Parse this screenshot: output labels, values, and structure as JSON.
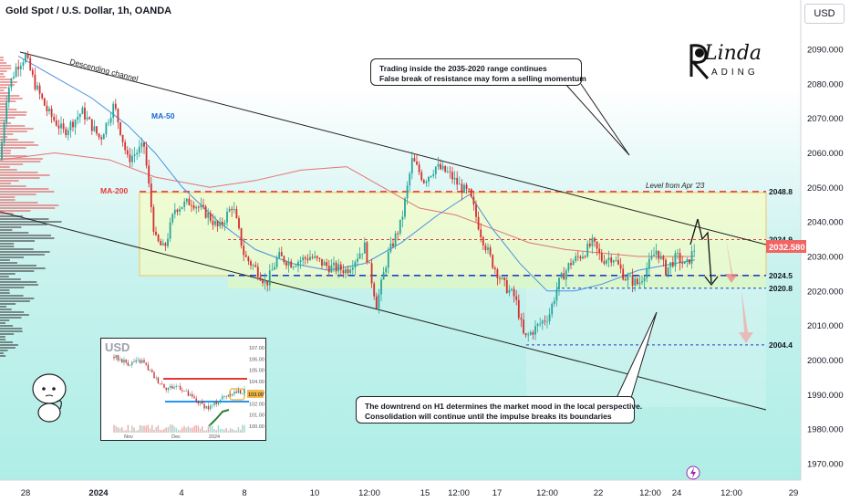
{
  "header": {
    "title": "Gold Spot / U.S. Dollar, 1h, OANDA",
    "currency_button": "USD"
  },
  "logo": {
    "brand": "Linda",
    "sub": "ADING"
  },
  "callouts": {
    "top": [
      "Trading inside the 2035-2020 range continues",
      "False break of resistance may form a selling momentum"
    ],
    "bottom": [
      "The downtrend on H1 determines the market mood in the local perspective.",
      "Consolidation will continue until the impulse breaks its boundaries"
    ]
  },
  "chart_data": {
    "type": "candlestick",
    "symbol": "Gold Spot / U.S. Dollar",
    "interval": "1h",
    "exchange": "OANDA",
    "ylim": [
      1965,
      2100
    ],
    "y_ticks": [
      2090,
      2080,
      2070,
      2060,
      2050,
      2040,
      2030,
      2020,
      2010,
      2000,
      1990,
      1980,
      1970
    ],
    "x_ticks": [
      "28",
      "2024",
      "4",
      "8",
      "10",
      "12:00",
      "15",
      "12:00",
      "17",
      "12:00",
      "22",
      "12:00",
      "24",
      "12:00",
      "29"
    ],
    "last_price": 2032.58,
    "last_price_label": "2032.580",
    "levels": [
      {
        "value": 2048.8,
        "label": "2048.8",
        "style": "dashed",
        "color": "#e53935"
      },
      {
        "value": 2034.9,
        "label": "2034.9",
        "style": "dashed",
        "color": "#e53935"
      },
      {
        "value": 2024.5,
        "label": "2024.5",
        "style": "dashed",
        "color": "#1e40c9"
      },
      {
        "value": 2020.8,
        "label": "2020.8",
        "style": "dashed",
        "color": "#1e40c9"
      },
      {
        "value": 2004.4,
        "label": "2004.4",
        "style": "dashed",
        "color": "#1e40c9"
      }
    ],
    "annotations": {
      "channel": "Descending channel",
      "ma50": "MA-50",
      "ma200": "MA-200",
      "level_note": "Level from Apr '23"
    },
    "path": [
      [
        0,
        2058
      ],
      [
        8,
        2078
      ],
      [
        18,
        2085
      ],
      [
        28,
        2088
      ],
      [
        38,
        2080
      ],
      [
        52,
        2072
      ],
      [
        70,
        2066
      ],
      [
        90,
        2072
      ],
      [
        110,
        2064
      ],
      [
        125,
        2074
      ],
      [
        140,
        2058
      ],
      [
        158,
        2062
      ],
      [
        170,
        2035
      ],
      [
        180,
        2032
      ],
      [
        192,
        2044
      ],
      [
        210,
        2046
      ],
      [
        228,
        2042
      ],
      [
        240,
        2038
      ],
      [
        255,
        2045
      ],
      [
        268,
        2030
      ],
      [
        282,
        2026
      ],
      [
        292,
        2022
      ],
      [
        305,
        2030
      ],
      [
        320,
        2028
      ],
      [
        340,
        2030
      ],
      [
        360,
        2027
      ],
      [
        380,
        2026
      ],
      [
        400,
        2033
      ],
      [
        413,
        2016
      ],
      [
        425,
        2030
      ],
      [
        440,
        2040
      ],
      [
        452,
        2058
      ],
      [
        465,
        2052
      ],
      [
        478,
        2056
      ],
      [
        492,
        2054
      ],
      [
        505,
        2050
      ],
      [
        515,
        2048
      ],
      [
        528,
        2036
      ],
      [
        540,
        2028
      ],
      [
        552,
        2022
      ],
      [
        565,
        2018
      ],
      [
        575,
        2006
      ],
      [
        590,
        2010
      ],
      [
        602,
        2013
      ],
      [
        612,
        2022
      ],
      [
        625,
        2028
      ],
      [
        640,
        2031
      ],
      [
        650,
        2034
      ],
      [
        660,
        2029
      ],
      [
        672,
        2030
      ],
      [
        685,
        2024
      ],
      [
        700,
        2022
      ],
      [
        712,
        2028
      ],
      [
        720,
        2032
      ],
      [
        730,
        2026
      ],
      [
        742,
        2030
      ],
      [
        752,
        2027
      ],
      [
        762,
        2032.58
      ]
    ],
    "ma50_path": [
      [
        20,
        2088
      ],
      [
        60,
        2082
      ],
      [
        100,
        2076
      ],
      [
        140,
        2068
      ],
      [
        170,
        2060
      ],
      [
        200,
        2050
      ],
      [
        240,
        2040
      ],
      [
        280,
        2032
      ],
      [
        320,
        2028
      ],
      [
        360,
        2026
      ],
      [
        400,
        2028
      ],
      [
        440,
        2034
      ],
      [
        480,
        2042
      ],
      [
        515,
        2048
      ],
      [
        540,
        2038
      ],
      [
        570,
        2028
      ],
      [
        600,
        2020
      ],
      [
        630,
        2020
      ],
      [
        660,
        2022
      ],
      [
        700,
        2026
      ],
      [
        740,
        2028
      ],
      [
        762,
        2029
      ]
    ],
    "ma200_path": [
      [
        0,
        2058
      ],
      [
        60,
        2060
      ],
      [
        120,
        2058
      ],
      [
        170,
        2053
      ],
      [
        230,
        2050
      ],
      [
        280,
        2052
      ],
      [
        330,
        2055
      ],
      [
        380,
        2056
      ],
      [
        420,
        2050
      ],
      [
        460,
        2044
      ],
      [
        500,
        2042
      ],
      [
        540,
        2038
      ],
      [
        580,
        2034
      ],
      [
        620,
        2032
      ],
      [
        660,
        2031
      ],
      [
        700,
        2030
      ],
      [
        740,
        2030
      ],
      [
        762,
        2030
      ]
    ]
  },
  "inset": {
    "currency": "USD",
    "y_ticks": [
      "107.00",
      "106.00",
      "105.00",
      "104.00",
      "103.00",
      "102.00",
      "101.00",
      "100.00"
    ],
    "x_ticks": [
      "Nov",
      "Dec",
      "2024"
    ],
    "last_label": "103.09"
  }
}
